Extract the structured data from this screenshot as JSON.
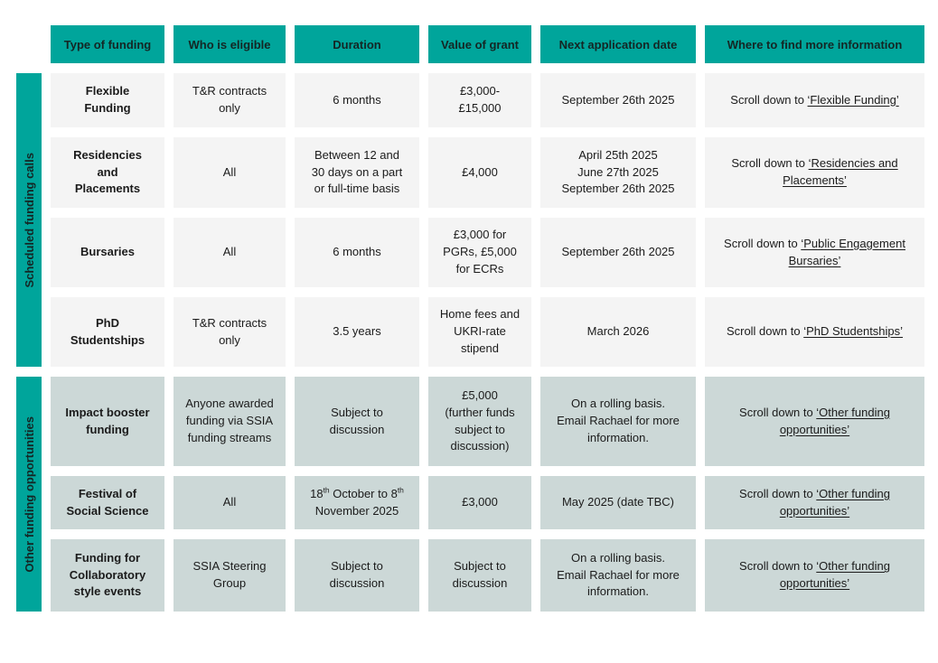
{
  "table": {
    "headers": [
      "Type of funding",
      "Who is eligible",
      "Duration",
      "Value of grant",
      "Next application date",
      "Where to find more information"
    ],
    "groups": [
      {
        "label": "Scheduled funding calls"
      },
      {
        "label": "Other funding opportunities"
      }
    ],
    "rows": [
      {
        "funding_type": "Flexible\nFunding",
        "eligible": "T&R contracts\nonly",
        "duration": "6 months",
        "value": "£3,000-\n£15,000",
        "next_date": "September 26th 2025",
        "info": {
          "prefix": "Scroll down to ",
          "link": "‘Flexible Funding’"
        }
      },
      {
        "funding_type": "Residencies\nand\nPlacements",
        "eligible": "All",
        "duration": "Between 12 and\n30 days on a part\nor full-time basis",
        "value": "£4,000",
        "next_date": "April 25th 2025\nJune 27th 2025\nSeptember 26th 2025",
        "info": {
          "prefix": "Scroll down to ",
          "link": "‘Residencies and Placements’"
        }
      },
      {
        "funding_type": "Bursaries",
        "eligible": "All",
        "duration": "6 months",
        "value": "£3,000 for\nPGRs, £5,000\nfor ECRs",
        "next_date": "September 26th 2025",
        "info": {
          "prefix": "Scroll down to ",
          "link": "‘Public Engagement Bursaries’"
        }
      },
      {
        "funding_type": "PhD\nStudentships",
        "eligible": "T&R contracts\nonly",
        "duration": "3.5 years",
        "value": "Home fees and\nUKRI-rate\nstipend",
        "next_date": "March 2026",
        "info": {
          "prefix": "Scroll down to ",
          "link": "‘PhD Studentships’"
        }
      },
      {
        "funding_type": "Impact booster\nfunding",
        "eligible": "Anyone awarded\nfunding via SSIA\nfunding streams",
        "duration": "Subject to\ndiscussion",
        "value": "£5,000\n(further funds\nsubject to\ndiscussion)",
        "next_date": "On a rolling basis.\nEmail Rachael for more\ninformation.",
        "info": {
          "prefix": "Scroll down to ",
          "link": "‘Other funding opportunities’"
        }
      },
      {
        "funding_type": "Festival of\nSocial Science",
        "eligible": "All",
        "duration_rich": [
          {
            "t": "18"
          },
          {
            "t": "th",
            "sup": true
          },
          {
            "t": " October to 8"
          },
          {
            "t": "th",
            "sup": true
          },
          {
            "t": "\nNovember 2025"
          }
        ],
        "value": "£3,000",
        "next_date": "May 2025 (date TBC)",
        "info": {
          "prefix": "Scroll down to ",
          "link": "‘Other funding opportunities’"
        }
      },
      {
        "funding_type": "Funding for\nCollaboratory\nstyle events",
        "eligible": "SSIA Steering\nGroup",
        "duration": "Subject to\ndiscussion",
        "value": "Subject to\ndiscussion",
        "next_date": "On a rolling basis.\nEmail Rachael for more\ninformation.",
        "info": {
          "prefix": "Scroll down to ",
          "link": "‘Other funding opportunities’"
        }
      }
    ]
  },
  "colors": {
    "teal": "#00a59b",
    "row_gray": "#f4f4f4",
    "row_teal_light": "#ccd8d7",
    "text": "#1b1b1b"
  }
}
